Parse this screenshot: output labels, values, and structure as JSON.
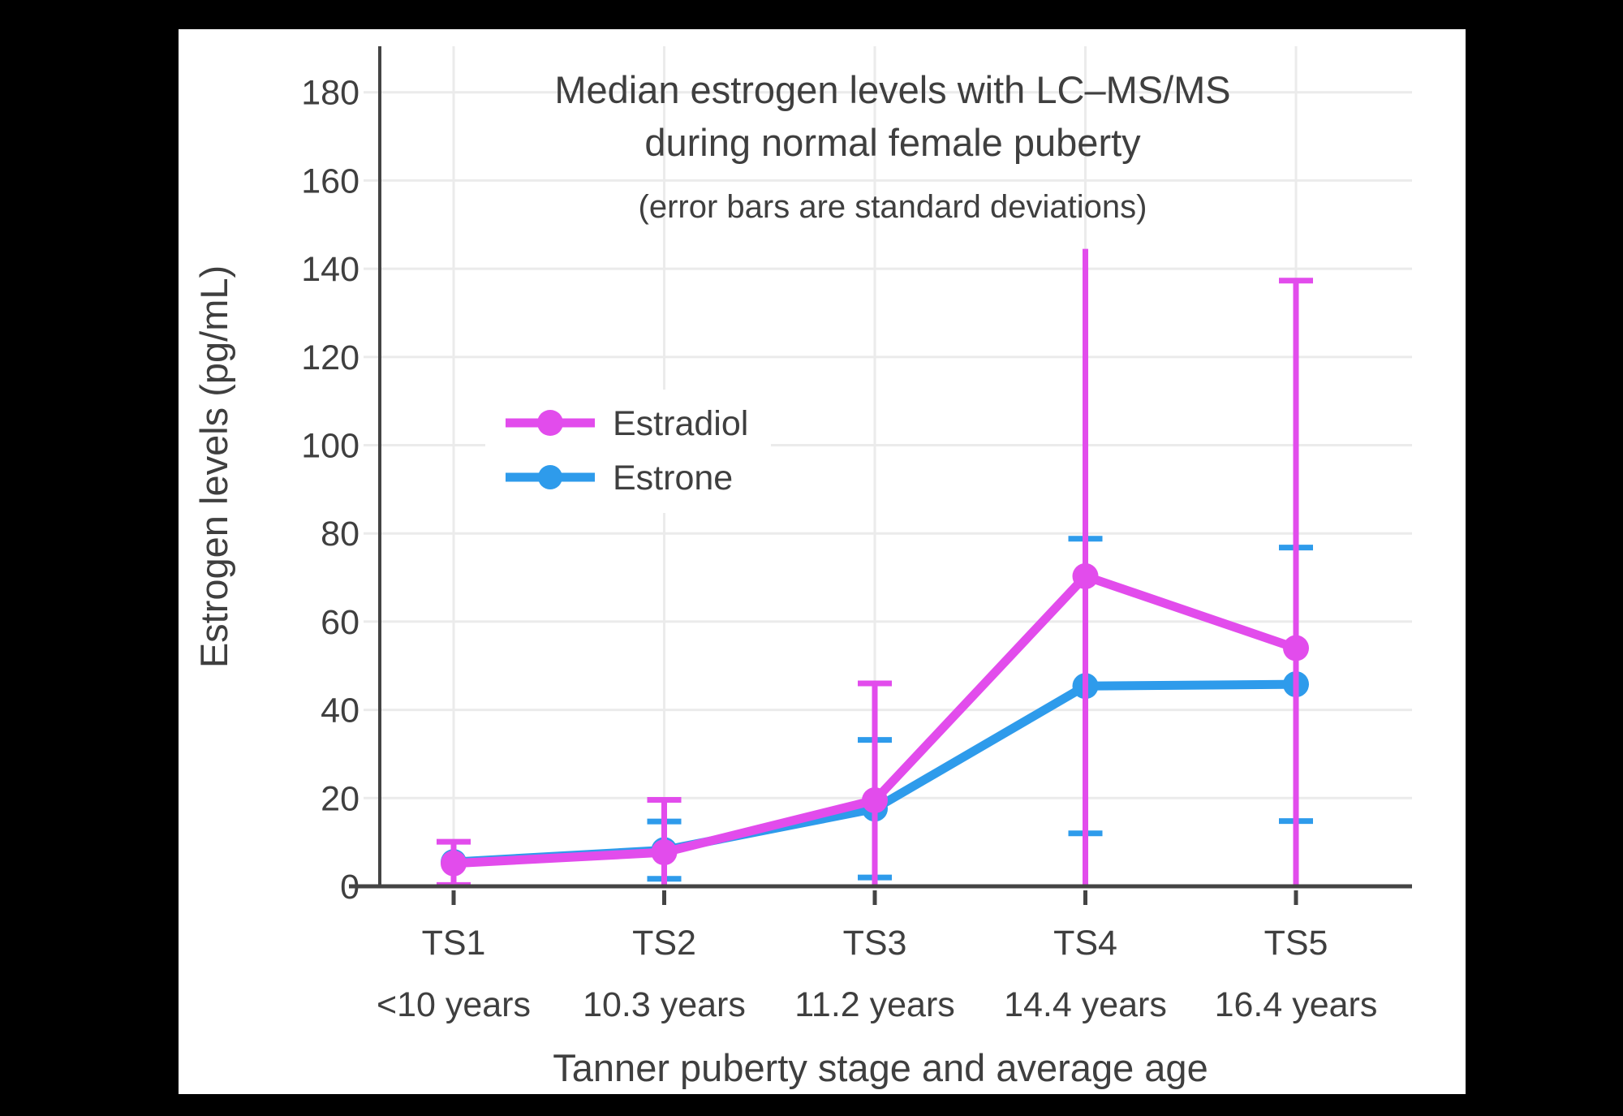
{
  "page": {
    "background_color": "#000000",
    "panel_color": "#ffffff",
    "text_color": "#3f3f3f",
    "axis_color": "#444444",
    "grid_color": "#ebebeb"
  },
  "chart_data": {
    "type": "line",
    "title_line1": "Median estrogen levels with LC–MS/MS",
    "title_line2": "during normal female puberty",
    "subtitle": "(error bars are standard deviations)",
    "xlabel": "Tanner puberty stage and average age",
    "ylabel": "Estrogen levels (pg/mL)",
    "categories": [
      "TS1",
      "TS2",
      "TS3",
      "TS4",
      "TS5"
    ],
    "category_sublabels": [
      "<10 years",
      "10.3 years",
      "11.2 years",
      "14.4 years",
      "16.4 years"
    ],
    "y_ticks": [
      0,
      20,
      40,
      60,
      80,
      100,
      120,
      140,
      160,
      180
    ],
    "ylim": [
      0,
      190
    ],
    "grid": true,
    "error_bar_note": "standard deviations, clipped at 0",
    "legend_position": "inside upper-left",
    "series": [
      {
        "name": "Estradiol",
        "color": "#E24CEC",
        "values": [
          5.2,
          7.7,
          19.5,
          70.3,
          54.0
        ],
        "sd": [
          4.9,
          11.9,
          26.5,
          74.2,
          83.3
        ],
        "top_caps": [
          true,
          true,
          true,
          false,
          true
        ]
      },
      {
        "name": "Estrone",
        "color": "#2E9BEB",
        "values": [
          5.5,
          8.2,
          17.6,
          45.4,
          45.8
        ],
        "sd": [
          0,
          6.5,
          15.6,
          33.4,
          31.0
        ],
        "top_caps": [
          false,
          true,
          true,
          true,
          true
        ]
      }
    ]
  }
}
